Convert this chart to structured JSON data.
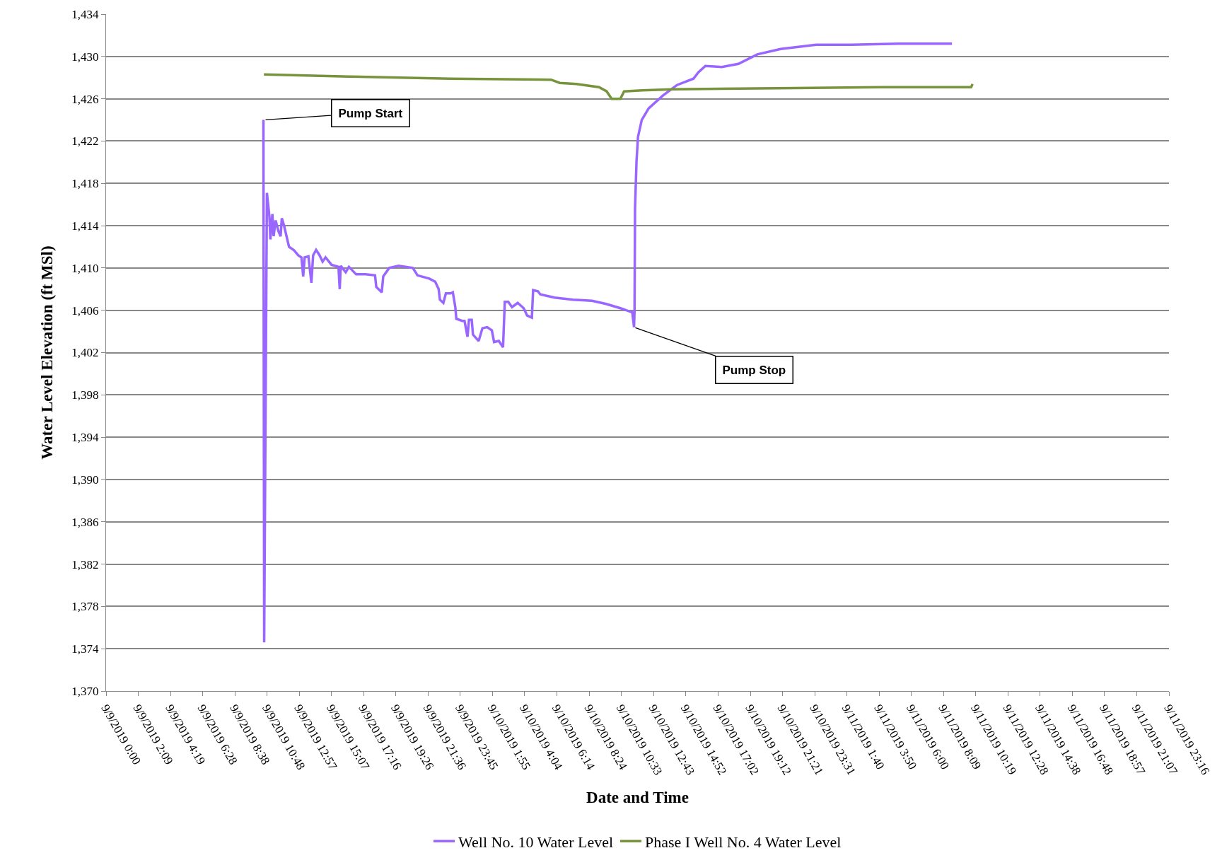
{
  "chart_data": {
    "type": "line",
    "xlabel": "Date and Time",
    "ylabel": "Water Level Elevation (ft MSl)",
    "xlim": [
      "2019-09-09T00:00",
      "2019-09-11T23:16"
    ],
    "xticks": [
      {
        "value": "2019-09-09T00:00",
        "label": "9/9/2019 0:00"
      },
      {
        "value": "2019-09-09T02:09",
        "label": "9/9/2019 2:09"
      },
      {
        "value": "2019-09-09T04:19",
        "label": "9/9/2019 4:19"
      },
      {
        "value": "2019-09-09T06:28",
        "label": "9/9/2019 6:28"
      },
      {
        "value": "2019-09-09T08:38",
        "label": "9/9/2019 8:38"
      },
      {
        "value": "2019-09-09T10:48",
        "label": "9/9/2019 10:48"
      },
      {
        "value": "2019-09-09T12:57",
        "label": "9/9/2019 12:57"
      },
      {
        "value": "2019-09-09T15:07",
        "label": "9/9/2019 15:07"
      },
      {
        "value": "2019-09-09T17:16",
        "label": "9/9/2019 17:16"
      },
      {
        "value": "2019-09-09T19:26",
        "label": "9/9/2019 19:26"
      },
      {
        "value": "2019-09-09T21:36",
        "label": "9/9/2019 21:36"
      },
      {
        "value": "2019-09-09T23:45",
        "label": "9/9/2019 23:45"
      },
      {
        "value": "2019-09-10T01:55",
        "label": "9/10/2019 1:55"
      },
      {
        "value": "2019-09-10T04:04",
        "label": "9/10/2019 4:04"
      },
      {
        "value": "2019-09-10T06:14",
        "label": "9/10/2019 6:14"
      },
      {
        "value": "2019-09-10T08:24",
        "label": "9/10/2019 8:24"
      },
      {
        "value": "2019-09-10T10:33",
        "label": "9/10/2019 10:33"
      },
      {
        "value": "2019-09-10T12:43",
        "label": "9/10/2019 12:43"
      },
      {
        "value": "2019-09-10T14:52",
        "label": "9/10/2019 14:52"
      },
      {
        "value": "2019-09-10T17:02",
        "label": "9/10/2019 17:02"
      },
      {
        "value": "2019-09-10T19:12",
        "label": "9/10/2019 19:12"
      },
      {
        "value": "2019-09-10T21:21",
        "label": "9/10/2019 21:21"
      },
      {
        "value": "2019-09-10T23:31",
        "label": "9/10/2019 23:31"
      },
      {
        "value": "2019-09-11T01:40",
        "label": "9/11/2019 1:40"
      },
      {
        "value": "2019-09-11T03:50",
        "label": "9/11/2019 3:50"
      },
      {
        "value": "2019-09-11T06:00",
        "label": "9/11/2019 6:00"
      },
      {
        "value": "2019-09-11T08:09",
        "label": "9/11/2019 8:09"
      },
      {
        "value": "2019-09-11T10:19",
        "label": "9/11/2019 10:19"
      },
      {
        "value": "2019-09-11T12:28",
        "label": "9/11/2019 12:28"
      },
      {
        "value": "2019-09-11T14:38",
        "label": "9/11/2019 14:38"
      },
      {
        "value": "2019-09-11T16:48",
        "label": "9/11/2019 16:48"
      },
      {
        "value": "2019-09-11T18:57",
        "label": "9/11/2019 18:57"
      },
      {
        "value": "2019-09-11T21:07",
        "label": "9/11/2019 21:07"
      },
      {
        "value": "2019-09-11T23:16",
        "label": "9/11/2019 23:16"
      }
    ],
    "ylim": [
      1370,
      1434
    ],
    "yticks": [
      {
        "value": 1370,
        "label": "1,370"
      },
      {
        "value": 1374,
        "label": "1,374"
      },
      {
        "value": 1378,
        "label": "1,378"
      },
      {
        "value": 1382,
        "label": "1,382"
      },
      {
        "value": 1386,
        "label": "1,386"
      },
      {
        "value": 1390,
        "label": "1,390"
      },
      {
        "value": 1394,
        "label": "1,394"
      },
      {
        "value": 1398,
        "label": "1,398"
      },
      {
        "value": 1402,
        "label": "1,402"
      },
      {
        "value": 1406,
        "label": "1,406"
      },
      {
        "value": 1410,
        "label": "1,410"
      },
      {
        "value": 1414,
        "label": "1,414"
      },
      {
        "value": 1418,
        "label": "1,418"
      },
      {
        "value": 1422,
        "label": "1,422"
      },
      {
        "value": 1426,
        "label": "1,426"
      },
      {
        "value": 1430,
        "label": "1,430"
      },
      {
        "value": 1434,
        "label": "1,434"
      }
    ],
    "grid": "y",
    "legend": "bottom",
    "marker": "none",
    "line_style": "solid",
    "series": [
      {
        "name": "Well No. 10 Water Level",
        "color": "#9966ff",
        "x": [
          "2019-09-09T10:33",
          "2019-09-09T10:36",
          "2019-09-09T10:47",
          "2019-09-09T10:57",
          "2019-09-09T11:01",
          "2019-09-09T11:09",
          "2019-09-09T11:14",
          "2019-09-09T11:22",
          "2019-09-09T11:33",
          "2019-09-09T11:42",
          "2019-09-09T11:47",
          "2019-09-09T11:56",
          "2019-09-09T12:16",
          "2019-09-09T12:35",
          "2019-09-09T12:53",
          "2019-09-09T13:06",
          "2019-09-09T13:13",
          "2019-09-09T13:19",
          "2019-09-09T13:34",
          "2019-09-09T13:46",
          "2019-09-09T13:53",
          "2019-09-09T14:05",
          "2019-09-09T14:19",
          "2019-09-09T14:31",
          "2019-09-09T14:43",
          "2019-09-09T15:07",
          "2019-09-09T15:35",
          "2019-09-09T15:40",
          "2019-09-09T15:44",
          "2019-09-09T16:04",
          "2019-09-09T16:17",
          "2019-09-09T16:46",
          "2019-09-09T17:24",
          "2019-09-09T18:02",
          "2019-09-09T18:07",
          "2019-09-09T18:29",
          "2019-09-09T18:35",
          "2019-09-09T18:59",
          "2019-09-09T19:37",
          "2019-09-09T20:34",
          "2019-09-09T20:53",
          "2019-09-09T21:40",
          "2019-09-09T22:04",
          "2019-09-09T22:18",
          "2019-09-09T22:23",
          "2019-09-09T22:37",
          "2019-09-09T22:47",
          "2019-09-09T23:06",
          "2019-09-09T23:15",
          "2019-09-09T23:25",
          "2019-09-09T23:29",
          "2019-09-09T23:53",
          "2019-09-10T00:02",
          "2019-09-10T00:14",
          "2019-09-10T00:20",
          "2019-09-10T00:31",
          "2019-09-10T00:36",
          "2019-09-10T00:59",
          "2019-09-10T01:14",
          "2019-09-10T01:33",
          "2019-09-10T01:52",
          "2019-09-10T02:01",
          "2019-09-10T02:20",
          "2019-09-10T02:37",
          "2019-09-10T02:44",
          "2019-09-10T02:58",
          "2019-09-10T03:13",
          "2019-09-10T03:36",
          "2019-09-10T04:00",
          "2019-09-10T04:14",
          "2019-09-10T04:33",
          "2019-09-10T04:38",
          "2019-09-10T04:57",
          "2019-09-10T05:07",
          "2019-09-10T06:04",
          "2019-09-10T07:19",
          "2019-09-10T08:35",
          "2019-09-10T09:32",
          "2019-09-10T10:29",
          "2019-09-10T11:17",
          "2019-09-10T11:24",
          "2019-09-10T11:26",
          "2019-09-10T11:28",
          "2019-09-10T11:34",
          "2019-09-10T11:40",
          "2019-09-10T11:55",
          "2019-09-10T12:23",
          "2019-09-10T13:20",
          "2019-09-10T14:17",
          "2019-09-10T15:23",
          "2019-09-10T15:43",
          "2019-09-10T16:11",
          "2019-09-10T17:17",
          "2019-09-10T18:24",
          "2019-09-10T19:40",
          "2019-09-10T21:14",
          "2019-09-10T23:37",
          "2019-09-11T01:59",
          "2019-09-11T05:09",
          "2019-09-11T08:43"
        ],
        "values": [
          1424,
          1374.6,
          1417.1,
          1414.9,
          1412.7,
          1415.1,
          1413,
          1414.5,
          1413.5,
          1413,
          1414.7,
          1414,
          1412,
          1411.7,
          1411.2,
          1411,
          1409.2,
          1411,
          1411.1,
          1408.6,
          1411.2,
          1411.7,
          1411.2,
          1410.6,
          1411,
          1410.3,
          1410.1,
          1408,
          1410.2,
          1409.6,
          1410.1,
          1409.4,
          1409.4,
          1409.3,
          1408.2,
          1407.7,
          1409.2,
          1410,
          1410.2,
          1410,
          1409.3,
          1409,
          1408.7,
          1408,
          1407,
          1406.7,
          1407.6,
          1407.6,
          1407.7,
          1406.3,
          1405.2,
          1405,
          1405,
          1403.5,
          1405.1,
          1405.1,
          1403.7,
          1403.1,
          1404.3,
          1404.4,
          1404.1,
          1403,
          1403.1,
          1402.5,
          1406.8,
          1406.8,
          1406.3,
          1406.7,
          1406.2,
          1405.5,
          1405.3,
          1407.9,
          1407.8,
          1407.5,
          1407.2,
          1407,
          1406.9,
          1406.6,
          1406.2,
          1405.8,
          1404.4,
          1406,
          1415.6,
          1420.1,
          1422.4,
          1424,
          1425.1,
          1426.3,
          1427.3,
          1427.9,
          1428.5,
          1429.1,
          1429,
          1429.3,
          1430.2,
          1430.7,
          1431.1,
          1431.1,
          1431.2,
          1431.2
        ]
      },
      {
        "name": "Phase I Well No. 4 Water Level",
        "color": "#77933c",
        "x": [
          "2019-09-09T10:35",
          "2019-09-09T16:16",
          "2019-09-09T23:03",
          "2019-09-10T05:50",
          "2019-09-10T06:25",
          "2019-09-10T07:32",
          "2019-09-10T09:03",
          "2019-09-10T09:34",
          "2019-09-10T09:54",
          "2019-09-10T10:29",
          "2019-09-10T10:44",
          "2019-09-10T11:56",
          "2019-09-10T14:00",
          "2019-09-10T21:00",
          "2019-09-11T04:00",
          "2019-09-11T10:00",
          "2019-09-11T10:06"
        ],
        "values": [
          1428.3,
          1428.1,
          1427.9,
          1427.8,
          1427.5,
          1427.4,
          1427.1,
          1426.7,
          1426,
          1426,
          1426.7,
          1426.8,
          1426.9,
          1427,
          1427.1,
          1427.1,
          1427.4
        ]
      }
    ],
    "annotations": [
      {
        "text": "Pump Start",
        "x": "2019-09-09T10:36",
        "y": 1424
      },
      {
        "text": "Pump Stop",
        "x": "2019-09-10T11:24",
        "y": 1404.4
      }
    ]
  }
}
